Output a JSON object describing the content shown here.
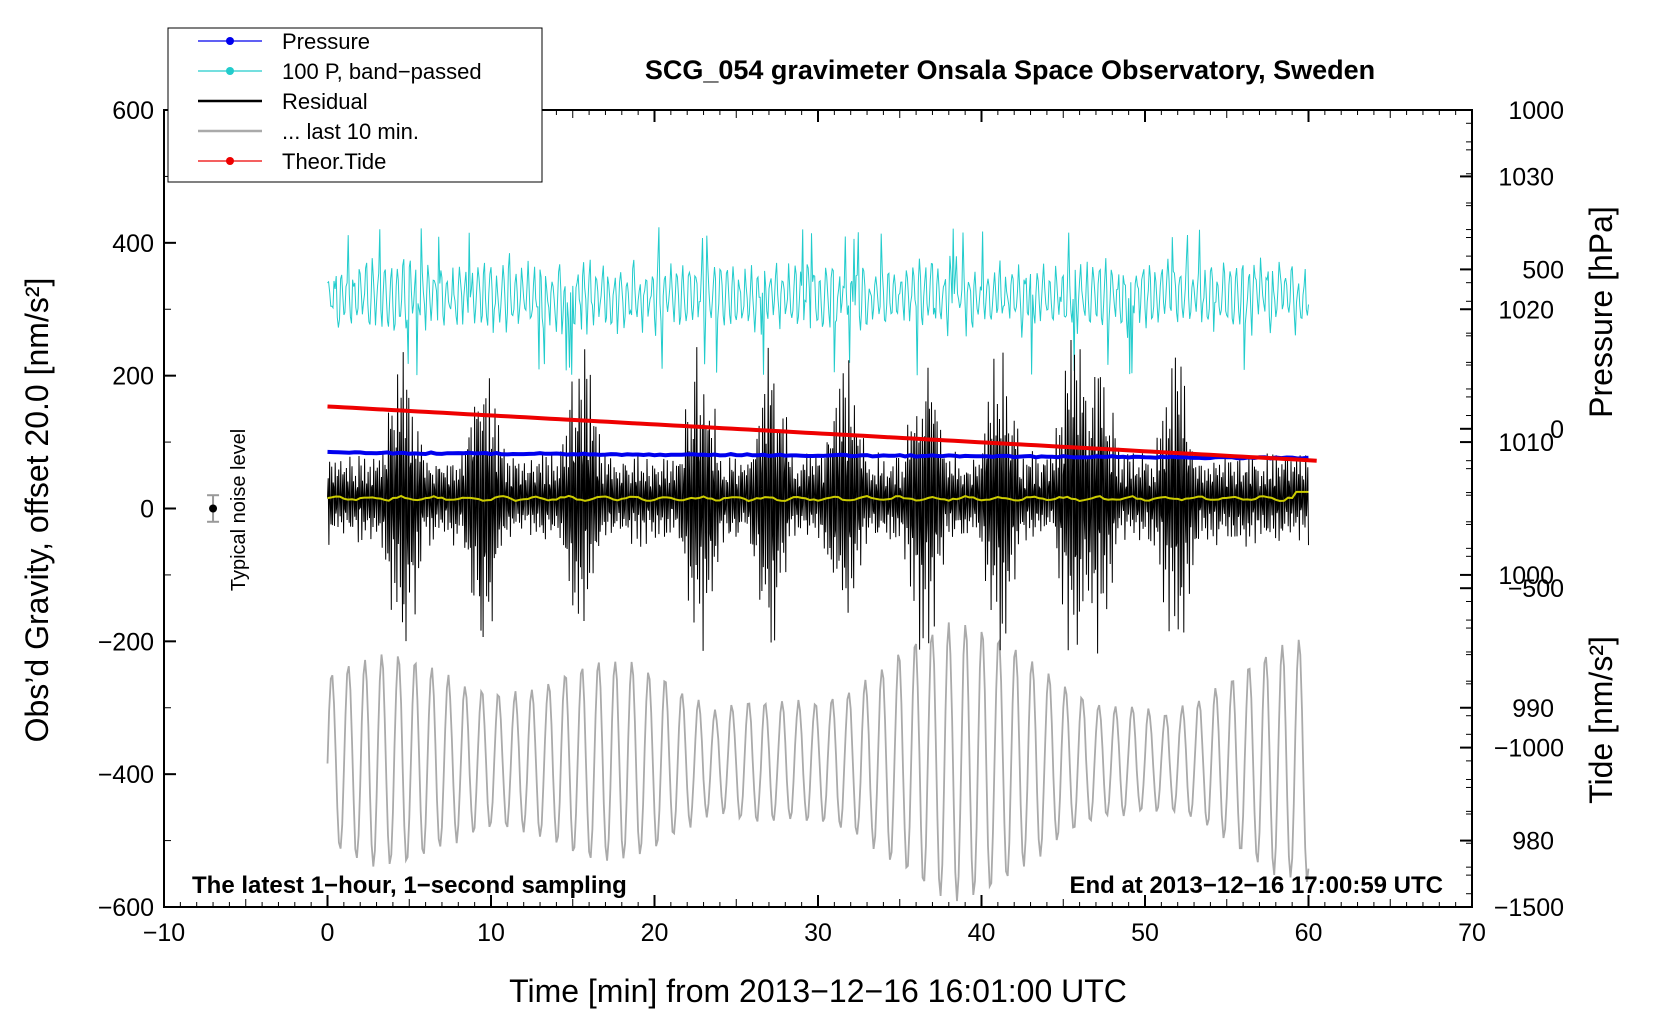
{
  "chart_data": {
    "type": "line",
    "title": "SCG_054 gravimeter Onsala Space Observatory, Sweden",
    "xlabel": "Time [min] from 2013−12−16 16:01:00 UTC",
    "ylabel_left": "Obs’d Gravity, offset 20.0 [nm/s²]",
    "ylabel_right_pressure": "Pressure [hPa]",
    "ylabel_right_tide": "Tide [nm/s²]",
    "xlim": [
      -10,
      70
    ],
    "ylim": [
      -600,
      600
    ],
    "pressure_axis": {
      "range": [
        975,
        1035
      ]
    },
    "tide_axis": {
      "range": [
        -1500,
        1000
      ]
    },
    "x_ticks": [
      "−10",
      "0",
      "10",
      "20",
      "30",
      "40",
      "50",
      "60",
      "70"
    ],
    "x_tick_values": [
      -10,
      0,
      10,
      20,
      30,
      40,
      50,
      60,
      70
    ],
    "y_ticks": [
      "600",
      "400",
      "200",
      "0",
      "−200",
      "−400",
      "−600"
    ],
    "y_tick_values": [
      600,
      400,
      200,
      0,
      -200,
      -400,
      -600
    ],
    "pressure_ticks": [
      "1030",
      "1020",
      "1010",
      "1000",
      "990",
      "980"
    ],
    "pressure_tick_values": [
      1030,
      1020,
      1010,
      1000,
      990,
      980
    ],
    "tide_ticks": [
      "1000",
      "500",
      "0",
      "−500",
      "−1000",
      "−1500"
    ],
    "tide_tick_values": [
      1000,
      500,
      0,
      -500,
      -1000,
      -1500
    ],
    "legend": [
      {
        "label": "Pressure",
        "color": "#0000ee",
        "marker": true
      },
      {
        "label": "100 P, band−passed",
        "color": "#22cccc",
        "marker": true
      },
      {
        "label": "Residual",
        "color": "#000000",
        "marker": false
      },
      {
        "label": "... last 10 min.",
        "color": "#aaaaaa",
        "marker": false
      },
      {
        "label": "Theor.Tide",
        "color": "#ee0000",
        "marker": true
      }
    ],
    "legend_position": "top-left",
    "annotations": {
      "left": "The latest 1−hour, 1−second sampling",
      "right": "End at 2013−12−16 17:00:59 UTC",
      "noise": "Typical noise level"
    },
    "noise_bar": {
      "x": -7,
      "y": 0,
      "err": 20
    },
    "series": [
      {
        "name": "Pressure",
        "axis": "pressure",
        "x_range": [
          0,
          60
        ],
        "values_start": 1009.2,
        "values_end": 1008.8
      },
      {
        "name": "100 P, band−passed",
        "axis": "left",
        "x_range": [
          0,
          60
        ],
        "center": 320,
        "min": 200,
        "max": 425
      },
      {
        "name": "Residual",
        "axis": "left",
        "x_range": [
          0,
          60
        ],
        "center": 15,
        "min": -260,
        "max": 280
      },
      {
        "name": "... last 10 min.",
        "axis": "left",
        "x_range": [
          0,
          60
        ],
        "center": -380,
        "min": -600,
        "max": -170
      },
      {
        "name": "Theor.Tide",
        "axis": "tide",
        "x_range": [
          0,
          60.5
        ],
        "values_start": 70,
        "values_end": -100
      },
      {
        "name": "Smoothed residual",
        "axis": "left",
        "x_range": [
          0,
          60
        ],
        "center": 15,
        "min": 10,
        "max": 25
      }
    ]
  }
}
